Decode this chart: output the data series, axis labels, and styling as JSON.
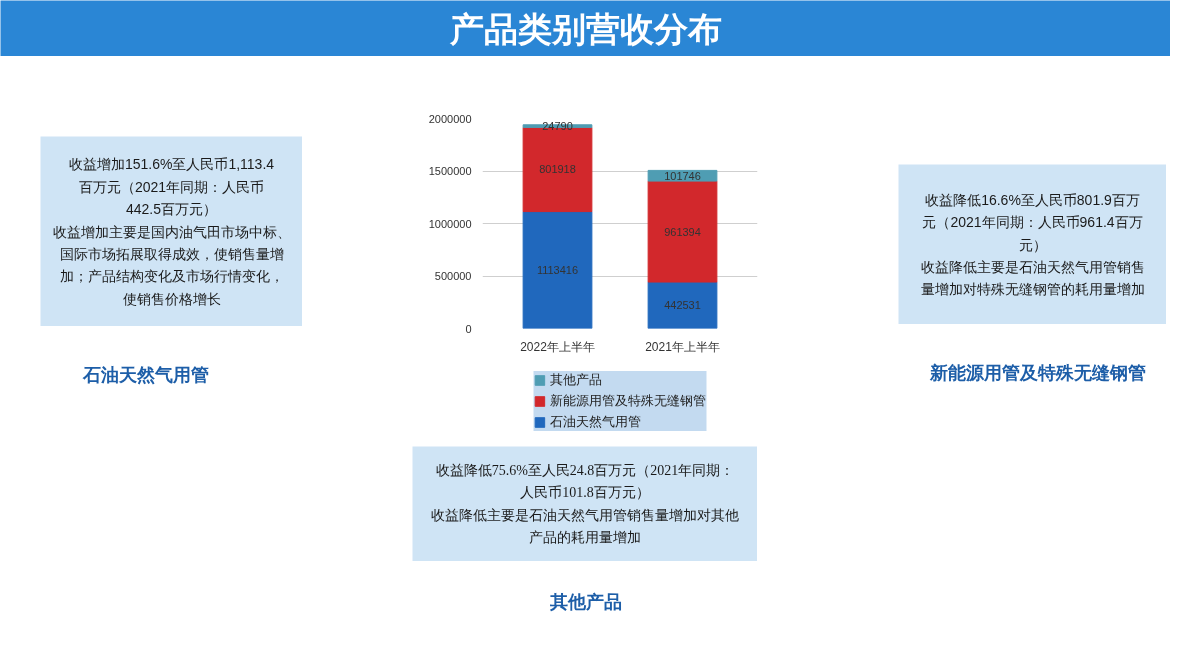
{
  "chart_data": {
    "type": "bar",
    "title": "产品类别营收分布",
    "categories": [
      "2022年上半年",
      "2021年上半年"
    ],
    "series": [
      {
        "name": "石油天然气用管",
        "color": "#2068bd",
        "values": [
          1113416,
          442531
        ]
      },
      {
        "name": "新能源用管及特殊无缝钢管",
        "color": "#d2282c",
        "values": [
          801918,
          961394
        ]
      },
      {
        "name": "其他产品",
        "color": "#4f9db3",
        "values": [
          24790,
          101746
        ]
      }
    ],
    "stacked": true,
    "ylim": [
      0,
      2000000
    ],
    "yticks": [
      0,
      500000,
      1000000,
      1500000,
      2000000
    ],
    "grid": "y",
    "legend": "bottom",
    "data_labels": true,
    "annotations": [
      "收益增加151.6%至人民币1,113.4百万元（2021年同期：人民币442.5百万元）",
      "收益增加主要是国内油气田市场中标、国际市场拓展取得成效，使销售量增加；产品结构变化及市场行情变化，使销售价格增长",
      "石油天然气用管",
      "收益降低16.6%至人民币801.9百万元（2021年同期：人民币961.4百万元）",
      "收益降低主要是石油天然气用管销售量增加对特殊无缝钢管的耗用量增加",
      "新能源用管及特殊无缝钢管",
      "收益降低75.6%至人民24.8百万元（2021年同期：人民币101.8百万元）",
      "收益降低主要是石油天然气用管销售量增加对其他产品的耗用量增加",
      "其他产品"
    ]
  }
}
